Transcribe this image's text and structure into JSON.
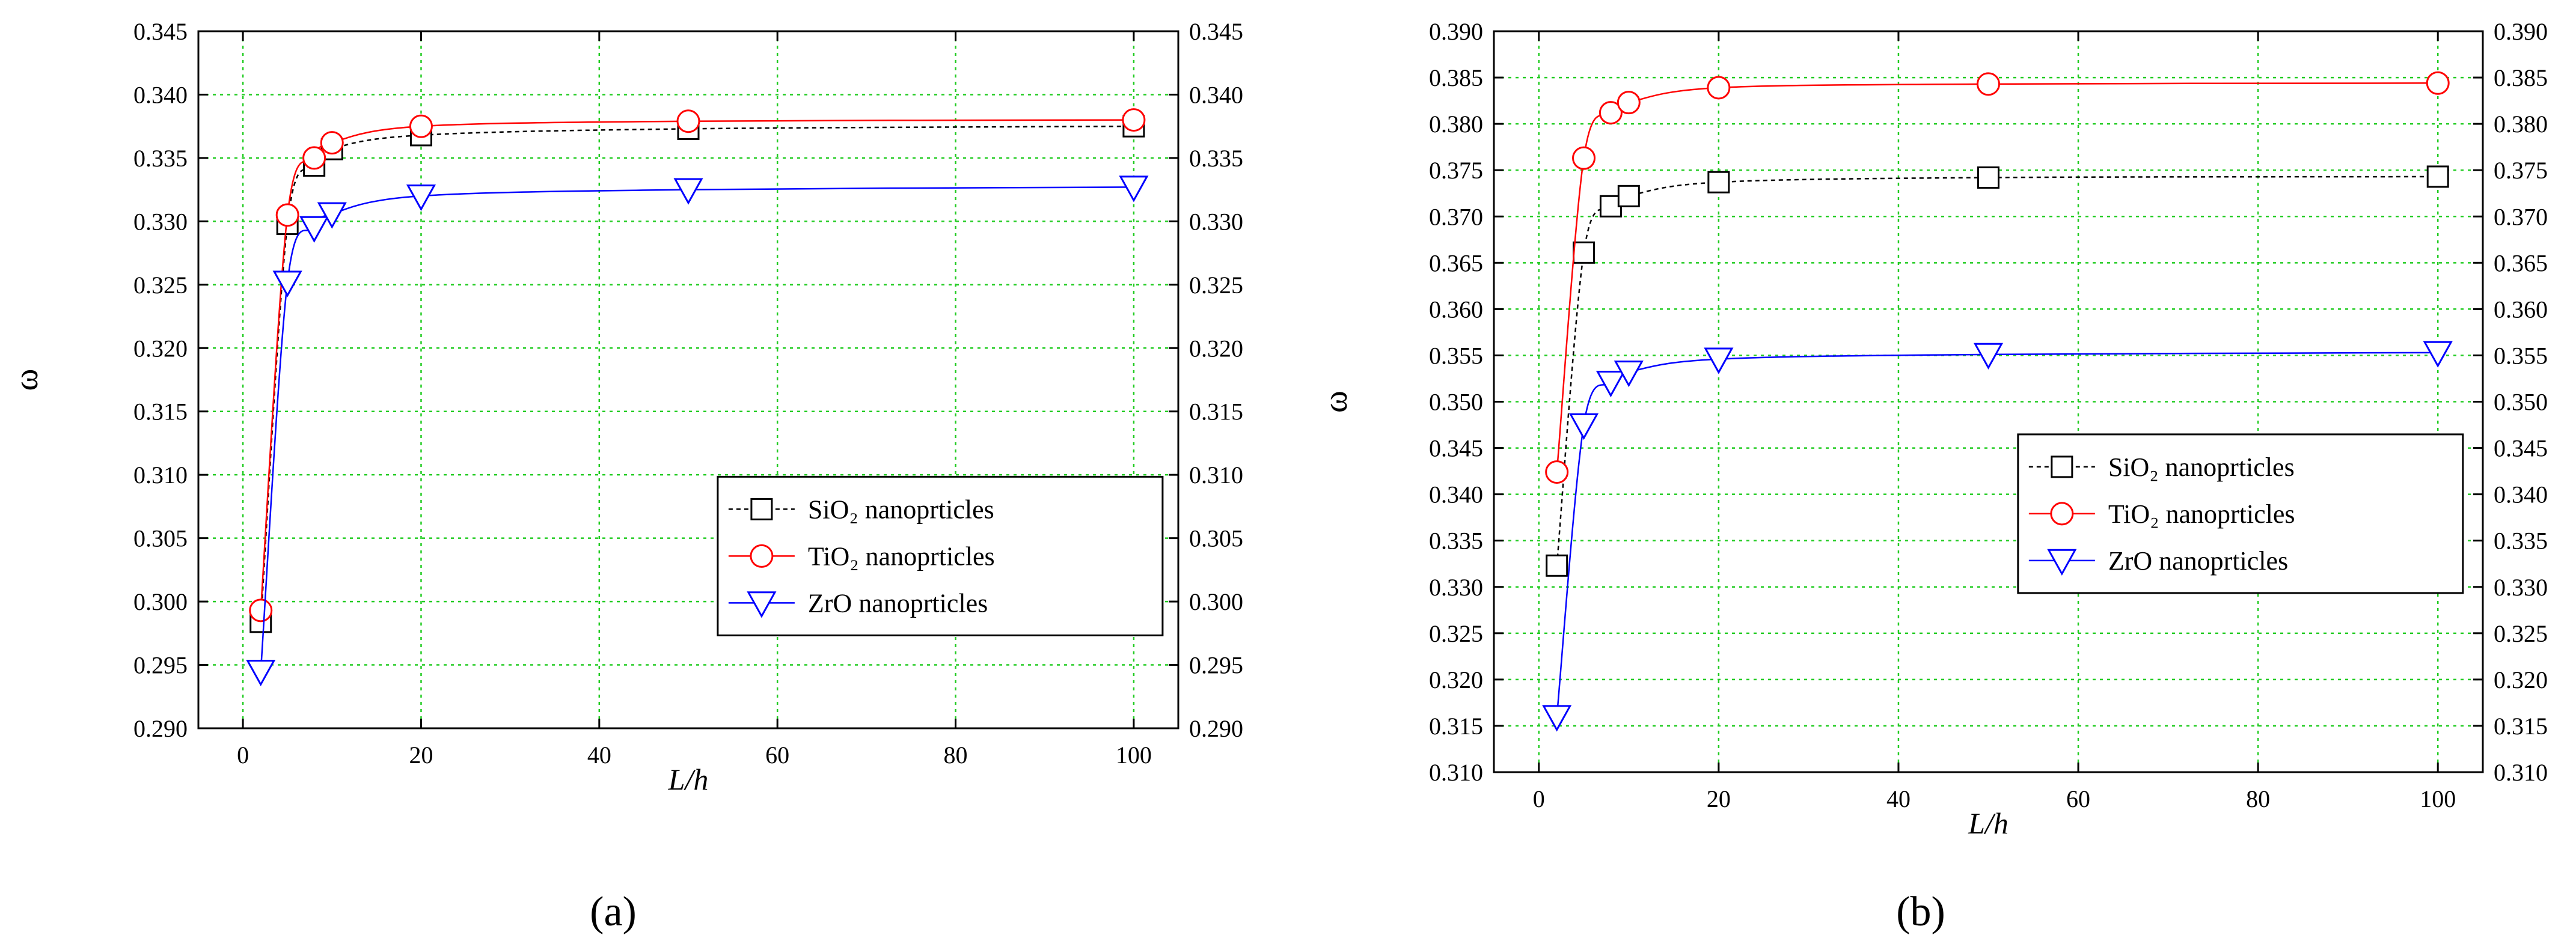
{
  "chart_data": [
    {
      "panel_label": "(a)",
      "type": "line",
      "title": "",
      "xlabel": "L/h",
      "ylabel": "ω",
      "xlim": [
        -5,
        105
      ],
      "ylim": [
        0.29,
        0.345
      ],
      "x_ticks": [
        0,
        20,
        40,
        60,
        80,
        100
      ],
      "y_ticks": [
        0.29,
        0.295,
        0.3,
        0.305,
        0.31,
        0.315,
        0.32,
        0.325,
        0.33,
        0.335,
        0.34,
        0.345
      ],
      "right_axis_mirrored": true,
      "grid": true,
      "legend_position": "lower-right",
      "series": [
        {
          "name": "SiO₂ nanoprticles",
          "marker": "square",
          "line_style": "dashed",
          "color": "#000000",
          "x": [
            2,
            5,
            8,
            10,
            20,
            50,
            100
          ],
          "y": [
            0.2984,
            0.3298,
            0.3344,
            0.3357,
            0.3368,
            0.3373,
            0.3375
          ]
        },
        {
          "name": "TiO₂ nanoprticles",
          "marker": "circle",
          "line_style": "solid",
          "color": "#ff0000",
          "x": [
            2,
            5,
            8,
            10,
            20,
            50,
            100
          ],
          "y": [
            0.2993,
            0.3305,
            0.335,
            0.3362,
            0.3375,
            0.3379,
            0.338
          ]
        },
        {
          "name": "ZrO nanoprticles",
          "marker": "triangle-down",
          "line_style": "solid",
          "color": "#0000ff",
          "x": [
            2,
            5,
            8,
            10,
            20,
            50,
            100
          ],
          "y": [
            0.2945,
            0.3252,
            0.3295,
            0.3306,
            0.332,
            0.3325,
            0.3327
          ]
        }
      ]
    },
    {
      "panel_label": "(b)",
      "type": "line",
      "title": "",
      "xlabel": "L/h",
      "ylabel": "ω",
      "xlim": [
        -5,
        105
      ],
      "ylim": [
        0.31,
        0.39
      ],
      "x_ticks": [
        0,
        20,
        40,
        60,
        80,
        100
      ],
      "y_ticks": [
        0.31,
        0.315,
        0.32,
        0.325,
        0.33,
        0.335,
        0.34,
        0.345,
        0.35,
        0.355,
        0.36,
        0.365,
        0.37,
        0.375,
        0.38,
        0.385,
        0.39
      ],
      "right_axis_mirrored": true,
      "grid": true,
      "legend_position": "lower-right",
      "series": [
        {
          "name": "SiO₂ nanoprticles",
          "marker": "square",
          "line_style": "dashed",
          "color": "#000000",
          "x": [
            2,
            5,
            8,
            10,
            20,
            50,
            100
          ],
          "y": [
            0.3323,
            0.3661,
            0.3711,
            0.3722,
            0.3737,
            0.3742,
            0.3743
          ]
        },
        {
          "name": "TiO₂ nanoprticles",
          "marker": "circle",
          "line_style": "solid",
          "color": "#ff0000",
          "x": [
            2,
            5,
            8,
            10,
            20,
            50,
            100
          ],
          "y": [
            0.3424,
            0.3763,
            0.3812,
            0.3823,
            0.3839,
            0.3843,
            0.3844
          ]
        },
        {
          "name": "ZrO nanoprticles",
          "marker": "triangle-down",
          "line_style": "solid",
          "color": "#0000ff",
          "x": [
            2,
            5,
            8,
            10,
            20,
            50,
            100
          ],
          "y": [
            0.316,
            0.3475,
            0.3521,
            0.3532,
            0.3546,
            0.3551,
            0.3553
          ]
        }
      ]
    }
  ],
  "colors": {
    "grid": "#22cc22",
    "axis": "#000000"
  }
}
